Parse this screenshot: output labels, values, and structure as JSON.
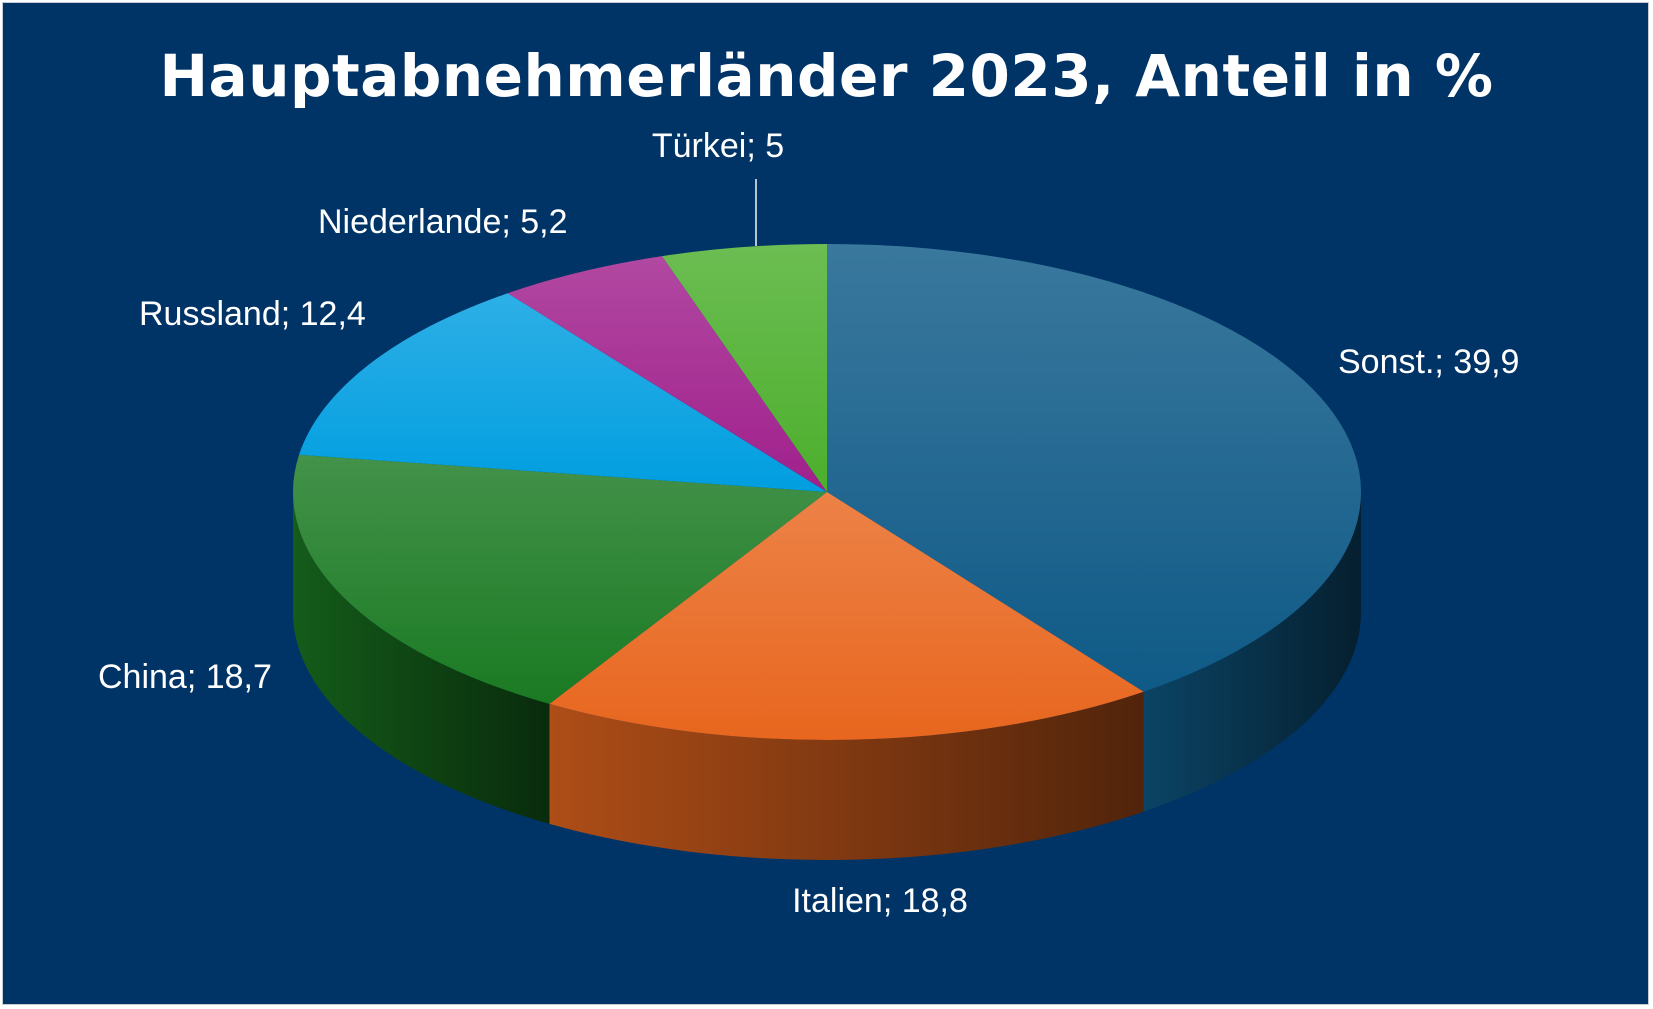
{
  "colors": {
    "background": "#003366",
    "Sonst.": "#0f5a87",
    "Italien": "#e8661e",
    "China": "#1a7a22",
    "Russland": "#009ee0",
    "Niederlande": "#a0208c",
    "Türkei": "#4caf2c"
  },
  "chart_data": {
    "type": "pie",
    "title": "Hauptabnehmerländer 2023, Anteil in %",
    "style": "3d",
    "categories": [
      "Sonst.",
      "Italien",
      "China",
      "Russland",
      "Niederlande",
      "Türkei"
    ],
    "values": [
      39.9,
      18.8,
      18.7,
      12.4,
      5.2,
      5
    ],
    "labels": [
      "Sonst.; 39,9",
      "Italien; 18,8",
      "China; 18,7",
      "Russland; 12,4",
      "Niederlande; 5,2",
      "Türkei; 5"
    ],
    "legend": "none",
    "data_labels": "category; value"
  }
}
